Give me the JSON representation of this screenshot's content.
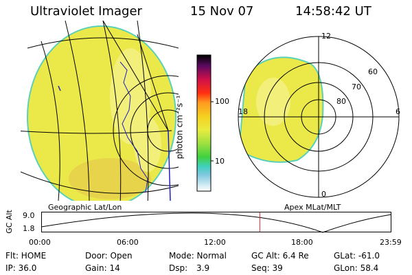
{
  "header": {
    "instrument": "Ultraviolet Imager",
    "date": "15 Nov 07",
    "time": "14:58:42 UT"
  },
  "colorbar": {
    "label": "photon cm⁻²s⁻¹",
    "tick_high": "100",
    "tick_low": "10"
  },
  "panels": {
    "left_label": "Geographic Lat/Lon",
    "right_label": "Apex MLat/MLT"
  },
  "polar_labels": {
    "mlt_top": "12",
    "mlt_bottom": "0",
    "mlt_left": "18",
    "mlt_right": "6",
    "lat_60": "60",
    "lat_70": "70",
    "lat_80": "80"
  },
  "altitude_plot": {
    "ylabel": "GC Alt",
    "y_max": "9.0",
    "y_min": "1.8",
    "x_ticks": [
      "00:00",
      "06:00",
      "12:00",
      "18:00",
      "23:59"
    ],
    "marker_hour": 14.98
  },
  "status": {
    "flt": "Flt: HOME",
    "door": "Door: Open",
    "mode": "Mode: Normal",
    "gc_alt": "GC Alt: 6.4 Re",
    "glat": "GLat: -61.0",
    "ip": "IP: 36.0",
    "gain": "Gain: 14",
    "dsp_label": "Dsp:",
    "dsp_value": "3.9",
    "seq": "Seq: 39",
    "glon": "GLon:  58.4"
  },
  "colors": {
    "disk_fill": "#ebe84a",
    "disk_edge": "#5ad0b8",
    "patch_light": "#f2f07a",
    "patch_orange": "#e8cf46",
    "marker": "#e02020",
    "coast": "#2020c0"
  }
}
